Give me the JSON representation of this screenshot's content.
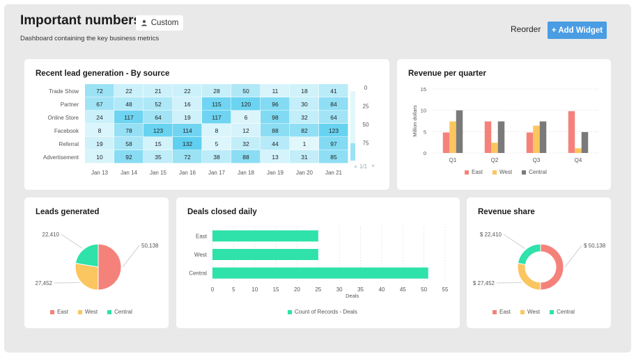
{
  "header": {
    "title": "Important numbers",
    "badge_label": "Custom",
    "subtitle": "Dashboard containing the key business metrics",
    "reorder_label": "Reorder",
    "add_widget_label": "+ Add Widget"
  },
  "colors": {
    "east": "#f4827b",
    "west": "#fbc55f",
    "central": "#2ee2aa",
    "central_bar": "#7a7a7a",
    "heat_low": "#e2f7fc",
    "heat_high": "#5fd0f0"
  },
  "heatmap_card": {
    "title": "Recent lead generation - By source",
    "pager": "1/1"
  },
  "revenue_quarter_card": {
    "title": "Revenue per quarter"
  },
  "leads_card": {
    "title": "Leads generated"
  },
  "deals_card": {
    "title": "Deals closed daily"
  },
  "share_card": {
    "title": "Revenue share"
  },
  "chart_data": [
    {
      "type": "heatmap",
      "title": "Recent lead generation - By source",
      "rows": [
        "Trade Show",
        "Partner",
        "Online Store",
        "Facebook",
        "Referral",
        "Advertisement"
      ],
      "columns": [
        "Jan 13",
        "Jan 14",
        "Jan 15",
        "Jan 16",
        "Jan 17",
        "Jan 18",
        "Jan 19",
        "Jan 20",
        "Jan 21"
      ],
      "values": [
        [
          72,
          22,
          21,
          22,
          28,
          50,
          11,
          18,
          41
        ],
        [
          67,
          48,
          52,
          16,
          115,
          120,
          96,
          30,
          84
        ],
        [
          24,
          117,
          64,
          19,
          117,
          6,
          98,
          32,
          64
        ],
        [
          8,
          78,
          123,
          114,
          8,
          12,
          88,
          82,
          123
        ],
        [
          19,
          58,
          15,
          132,
          5,
          32,
          44,
          1,
          97
        ],
        [
          10,
          92,
          35,
          72,
          38,
          88,
          13,
          31,
          85
        ]
      ],
      "scale_ticks": [
        0,
        25,
        50,
        75
      ]
    },
    {
      "type": "bar",
      "title": "Revenue per quarter",
      "categories": [
        "Q1",
        "Q2",
        "Q3",
        "Q4"
      ],
      "series": [
        {
          "name": "East",
          "values": [
            4.8,
            7.4,
            4.8,
            9.8
          ]
        },
        {
          "name": "West",
          "values": [
            7.4,
            2.4,
            6.4,
            1.1
          ]
        },
        {
          "name": "Central",
          "values": [
            10,
            7.4,
            7.4,
            4.9
          ]
        }
      ],
      "ylabel": "Million dollars",
      "ylim": [
        0,
        15
      ],
      "yticks": [
        0,
        5,
        10,
        15
      ],
      "grid": true,
      "legend": "bottom"
    },
    {
      "type": "pie",
      "title": "Leads generated",
      "labels": [
        "East",
        "West",
        "Central"
      ],
      "values": [
        50138,
        27452,
        22410
      ],
      "value_labels": [
        "50,138",
        "27,452",
        "22,410"
      ],
      "legend": "bottom"
    },
    {
      "type": "bar",
      "orientation": "horizontal",
      "title": "Deals closed daily",
      "categories": [
        "East",
        "West",
        "Central"
      ],
      "values": [
        25,
        25,
        51
      ],
      "xlabel": "Deals",
      "xlim": [
        0,
        55
      ],
      "xticks": [
        0,
        5,
        10,
        15,
        20,
        25,
        30,
        35,
        40,
        45,
        50,
        55
      ],
      "series_name": "Count of Records - Deals",
      "legend": "bottom"
    },
    {
      "type": "pie",
      "title": "Revenue share",
      "donut": true,
      "labels": [
        "East",
        "West",
        "Central"
      ],
      "values": [
        50138,
        27452,
        22410
      ],
      "value_labels": [
        "$ 50,138",
        "$ 27,452",
        "$ 22,410"
      ],
      "legend": "bottom"
    }
  ]
}
